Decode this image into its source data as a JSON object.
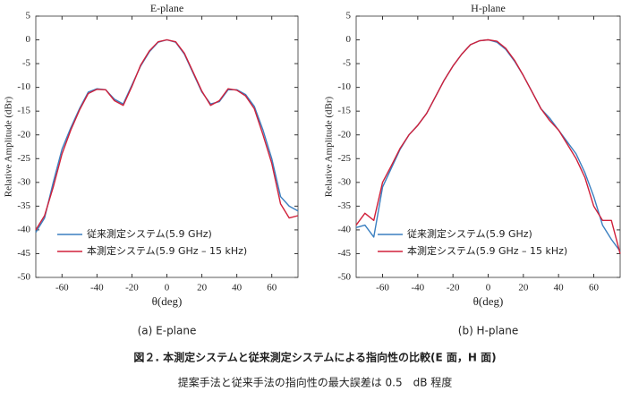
{
  "chart_data": [
    {
      "type": "line",
      "title": "E-plane",
      "caption": "(a) E-plane",
      "xlabel": "θ(deg)",
      "ylabel": "Relative Amplitude (dBr)",
      "x": [
        -75,
        -70,
        -65,
        -60,
        -55,
        -50,
        -45,
        -40,
        -35,
        -30,
        -25,
        -20,
        -15,
        -10,
        -5,
        0,
        5,
        10,
        15,
        20,
        25,
        30,
        35,
        40,
        45,
        50,
        55,
        60,
        65,
        70,
        75
      ],
      "series": [
        {
          "name": "従来測定システム(5.9 GHz)",
          "color": "#3a7fc0",
          "values": [
            -40.5,
            -37.5,
            -30,
            -23,
            -18.5,
            -14.5,
            -11,
            -10.3,
            -10.5,
            -12.5,
            -13.5,
            -9.5,
            -5.5,
            -2.5,
            -0.5,
            0,
            -0.5,
            -3,
            -7,
            -11,
            -13.5,
            -13,
            -10.5,
            -10.5,
            -11.5,
            -14,
            -19,
            -25,
            -33,
            -35,
            -36
          ]
        },
        {
          "name": "本測定システム(5.9 GHz – 15 kHz)",
          "color": "#d0203a",
          "values": [
            -40,
            -37,
            -31,
            -24,
            -19,
            -14.8,
            -11.3,
            -10.4,
            -10.5,
            -12.8,
            -13.8,
            -9.8,
            -5.3,
            -2.3,
            -0.4,
            0,
            -0.4,
            -2.8,
            -6.8,
            -10.8,
            -13.8,
            -12.8,
            -10.3,
            -10.6,
            -11.8,
            -14.5,
            -20,
            -26,
            -34.5,
            -37.5,
            -37
          ]
        }
      ],
      "xlim": [
        -75,
        75
      ],
      "xticks": [
        -60,
        -40,
        -20,
        0,
        20,
        40,
        60
      ],
      "ylim": [
        -50,
        5
      ],
      "yticks": [
        5,
        0,
        -5,
        -10,
        -15,
        -20,
        -25,
        -30,
        -35,
        -40,
        -45,
        -50
      ],
      "legend": "lower left"
    },
    {
      "type": "line",
      "title": "H-plane",
      "caption": "(b) H-plane",
      "xlabel": "θ(deg)",
      "ylabel": "Relative Amplitude (dBr)",
      "x": [
        -75,
        -70,
        -65,
        -60,
        -55,
        -50,
        -45,
        -40,
        -35,
        -30,
        -25,
        -20,
        -15,
        -10,
        -5,
        0,
        5,
        10,
        15,
        20,
        25,
        30,
        35,
        40,
        45,
        50,
        55,
        60,
        65,
        70,
        75
      ],
      "series": [
        {
          "name": "従来測定システム(5.9 GHz)",
          "color": "#3a7fc0",
          "values": [
            -39.5,
            -39,
            -41.5,
            -31,
            -27,
            -23,
            -20,
            -18,
            -15.5,
            -12,
            -8.5,
            -5.5,
            -3,
            -1,
            -0.2,
            0,
            -0.5,
            -2,
            -4.5,
            -7.5,
            -11,
            -14.5,
            -16.5,
            -19,
            -21.5,
            -24,
            -28,
            -33,
            -39,
            -42,
            -44.5
          ]
        },
        {
          "name": "本測定システム(5.9 GHz – 15 kHz)",
          "color": "#d0203a",
          "values": [
            -39,
            -36.5,
            -38,
            -30,
            -26.5,
            -22.8,
            -20,
            -18,
            -15.5,
            -12,
            -8.5,
            -5.5,
            -3,
            -1,
            -0.2,
            0,
            -0.3,
            -1.8,
            -4.3,
            -7.5,
            -11,
            -14.5,
            -17,
            -19,
            -22,
            -25,
            -29,
            -35,
            -38,
            -38,
            -45
          ]
        }
      ],
      "xlim": [
        -75,
        75
      ],
      "xticks": [
        -60,
        -40,
        -20,
        0,
        20,
        40,
        60
      ],
      "ylim": [
        -50,
        5
      ],
      "yticks": [
        5,
        0,
        -5,
        -10,
        -15,
        -20,
        -25,
        -30,
        -35,
        -40,
        -45,
        -50
      ],
      "legend": "lower left"
    }
  ],
  "figure": {
    "title": "図２. 本測定システムと従来測定システムによる指向性の比較(E 面，H 面)",
    "note": "提案手法と従来手法の指向性の最大誤差は 0.5　dB 程度"
  }
}
